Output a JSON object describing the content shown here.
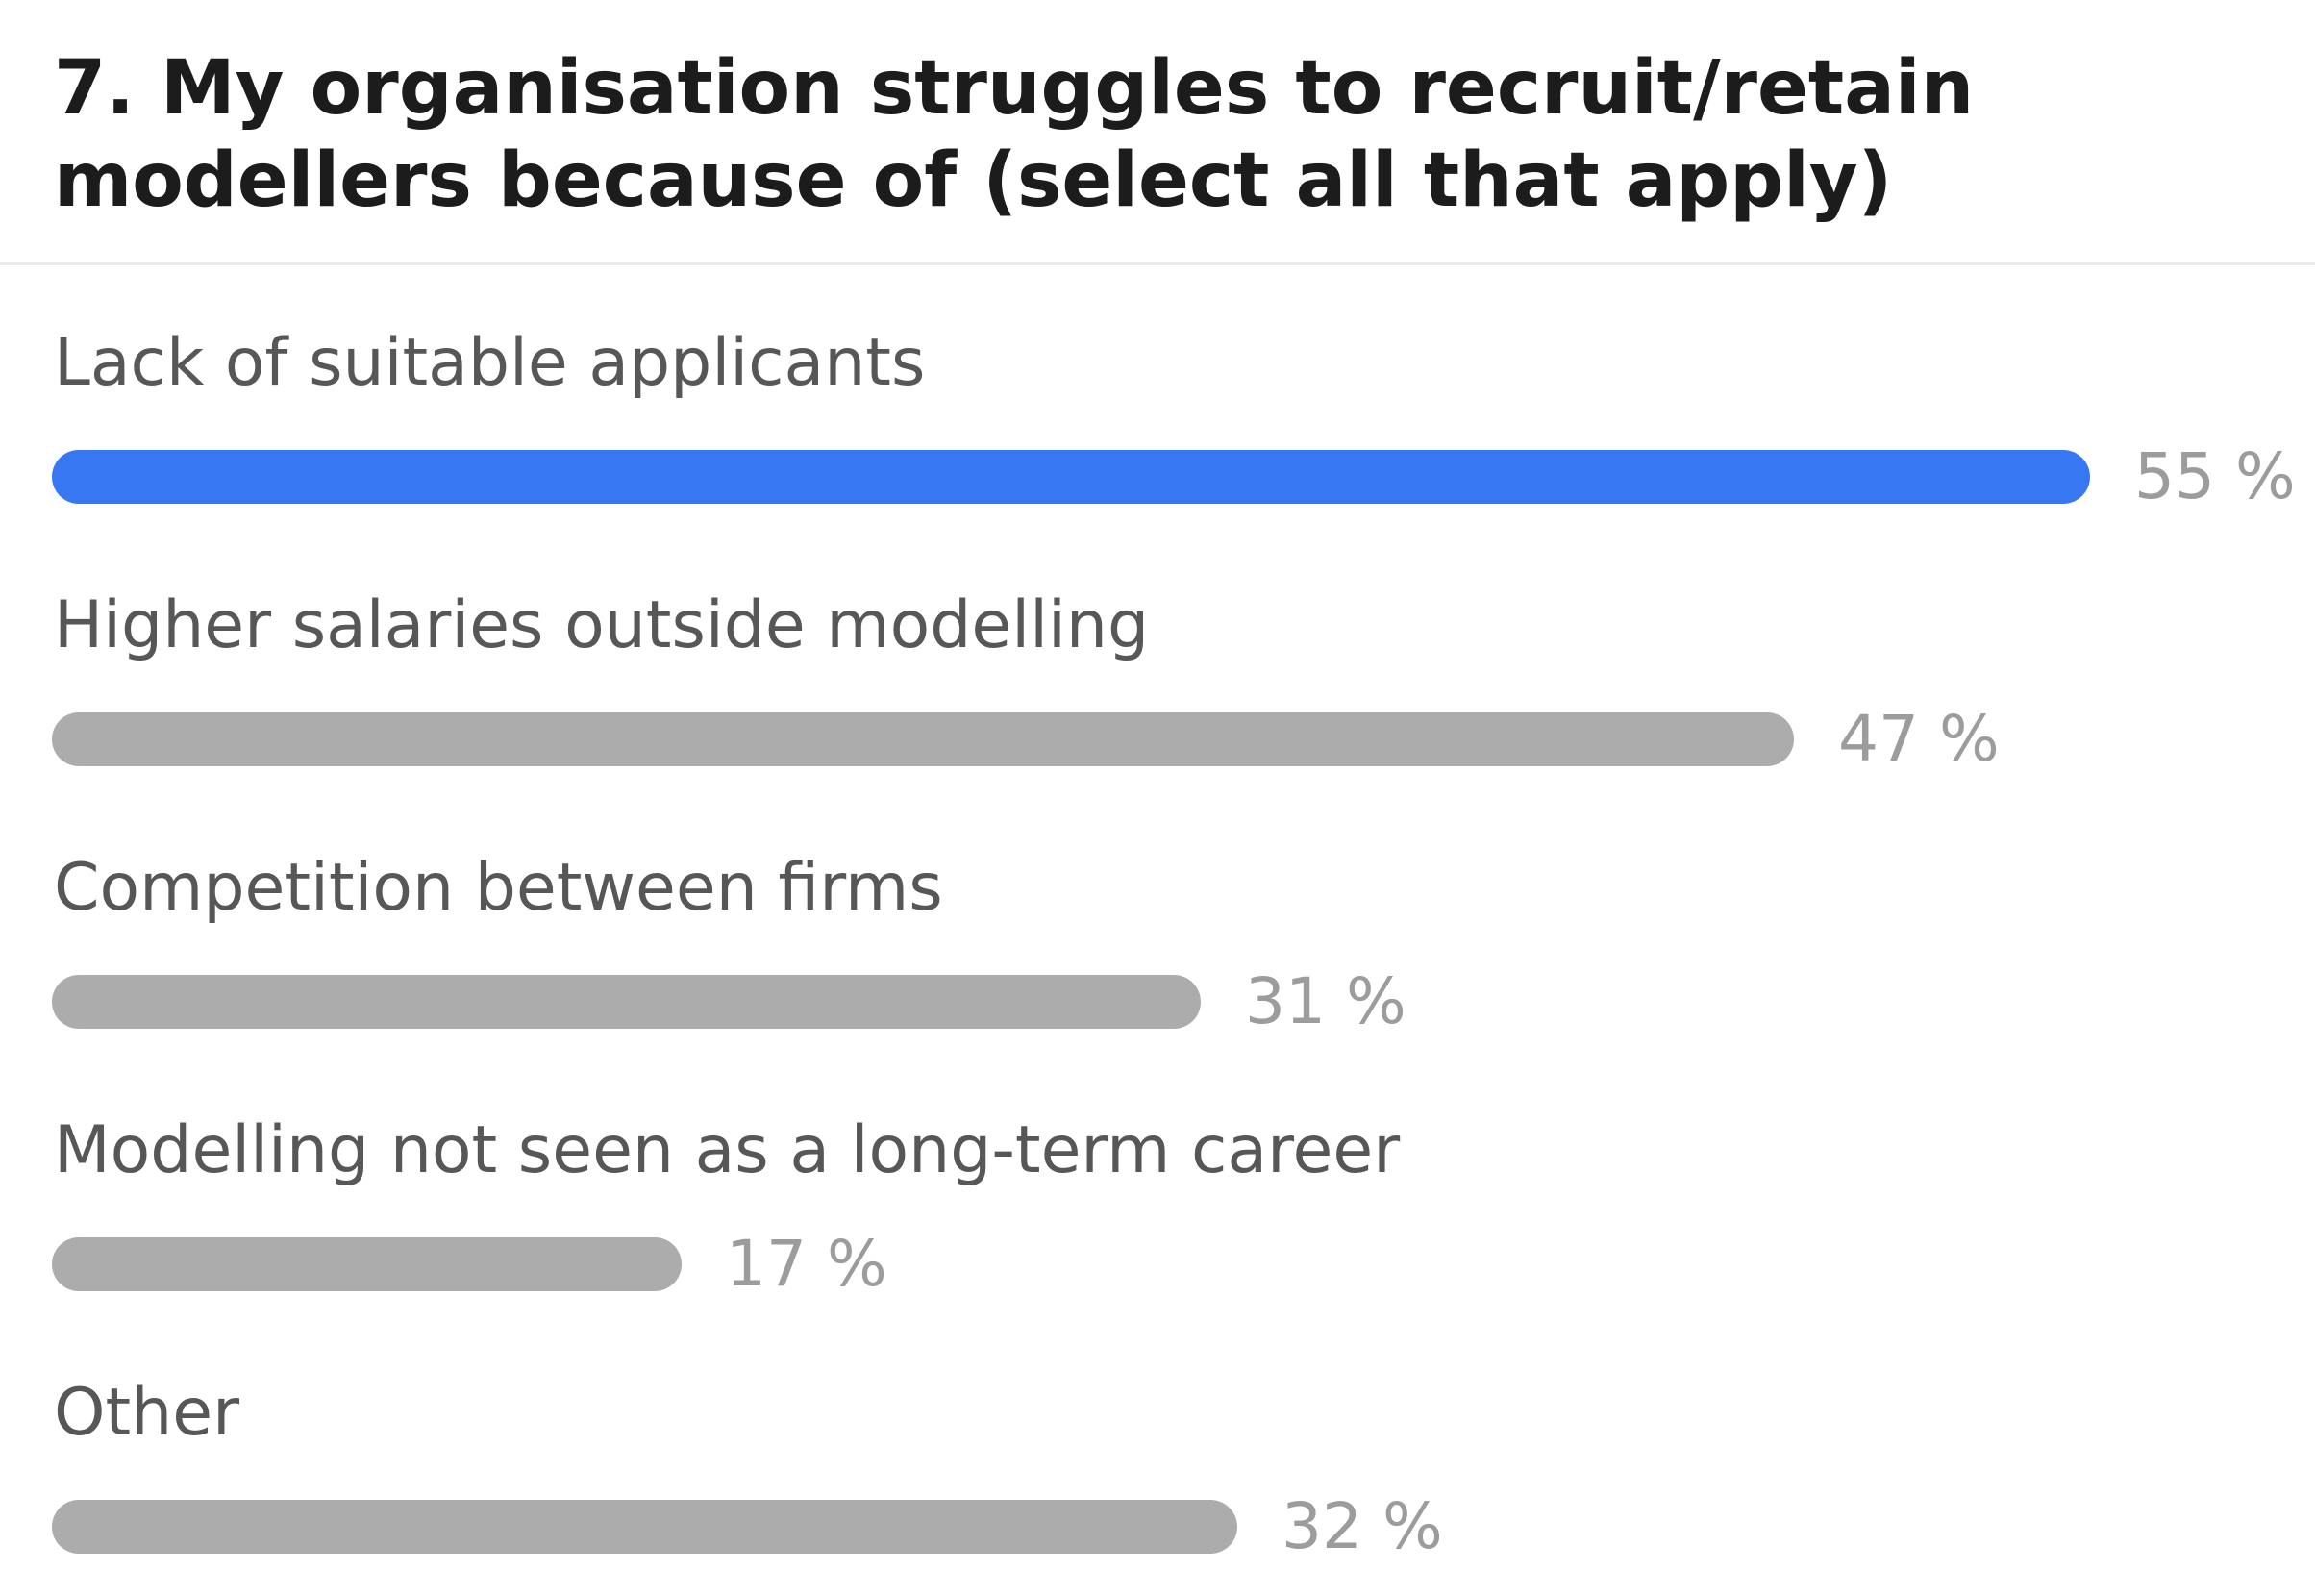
{
  "question": {
    "title": "7. My organisation struggles to recruit/retain modellers because of (select all that apply)"
  },
  "chart_data": {
    "type": "bar",
    "orientation": "horizontal",
    "title": "7. My organisation struggles to recruit/retain modellers because of (select all that apply)",
    "categories": [
      "Lack of suitable applicants",
      "Higher salaries outside modelling",
      "Competition between firms",
      "Modelling not seen as a long-term career",
      "Other"
    ],
    "values": [
      55,
      47,
      31,
      17,
      32
    ],
    "value_labels": [
      "55 %",
      "47 %",
      "31 %",
      "17 %",
      "32 %"
    ],
    "unit": "%",
    "xlim": [
      0,
      55
    ],
    "grid": false,
    "highlight_index": 0,
    "colors": {
      "highlight": "#3777f1",
      "default": "#acacac",
      "label": "#575757",
      "value": "#9c9c9c",
      "title": "#1c1c1c",
      "divider": "#e6edf0"
    }
  }
}
